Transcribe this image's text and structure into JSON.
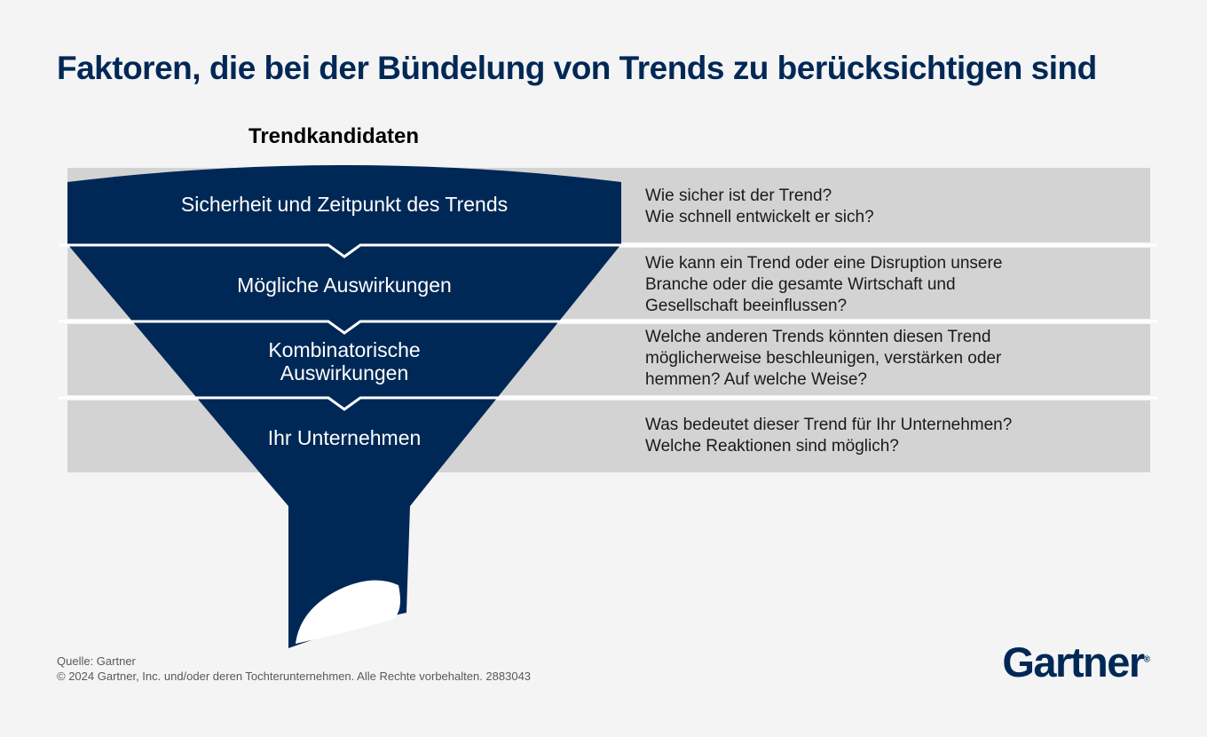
{
  "title": "Faktoren, die bei der Bündelung von Trends zu berücksichtigen sind",
  "funnel_label": "Trendkandidaten",
  "stages": [
    {
      "label": "Sicherheit und Zeitpunkt des Trends",
      "description": [
        "Wie sicher ist der Trend?",
        "Wie schnell entwickelt er sich?"
      ]
    },
    {
      "label": "Mögliche Auswirkungen",
      "description": [
        "Wie kann ein Trend oder eine Disruption unsere",
        "Branche oder die gesamte Wirtschaft und",
        "Gesellschaft beeinflussen?"
      ]
    },
    {
      "label_lines": [
        "Kombinatorische",
        "Auswirkungen"
      ],
      "description": [
        "Welche anderen Trends könnten diesen Trend",
        "möglicherweise beschleunigen, verstärken oder",
        "hemmen? Auf welche Weise?"
      ]
    },
    {
      "label": "Ihr Unternehmen",
      "description": [
        "Was bedeutet dieser Trend für Ihr Unternehmen?",
        "Welche Reaktionen sind möglich?"
      ]
    }
  ],
  "source": "Quelle: Gartner",
  "copyright": "© 2024 Gartner, Inc. und/oder deren Tochterunternehmen. Alle Rechte vorbehalten. 2883043",
  "logo": "Gartner",
  "logo_mark": "®",
  "colors": {
    "navy": "#002856",
    "band_gray": "#d3d3d3",
    "background": "#f4f4f4"
  }
}
